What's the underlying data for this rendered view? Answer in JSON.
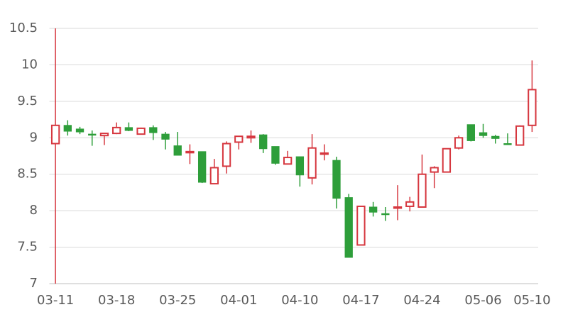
{
  "chart_data": {
    "type": "candlestick",
    "categories": [
      "03-11",
      null,
      null,
      null,
      null,
      "03-18",
      null,
      null,
      null,
      null,
      "03-25",
      null,
      null,
      null,
      null,
      "04-01",
      null,
      null,
      null,
      null,
      "04-10",
      null,
      null,
      null,
      null,
      "04-17",
      null,
      null,
      null,
      null,
      "04-24",
      null,
      null,
      null,
      null,
      "05-06",
      null,
      null,
      null,
      "05-10"
    ],
    "open": [
      8.92,
      9.17,
      9.12,
      9.05,
      9.03,
      9.06,
      9.14,
      9.05,
      9.14,
      9.05,
      8.89,
      8.8,
      8.81,
      8.37,
      8.61,
      8.94,
      9.0,
      9.04,
      8.88,
      8.64,
      8.74,
      8.45,
      8.78,
      8.69,
      8.18,
      7.53,
      8.05,
      7.96,
      8.04,
      8.06,
      8.05,
      8.53,
      8.53,
      8.86,
      9.18,
      9.07,
      9.02,
      8.92,
      8.9,
      9.17
    ],
    "high": [
      10.5,
      9.24,
      9.15,
      9.1,
      9.06,
      9.21,
      9.21,
      9.14,
      9.17,
      9.08,
      9.08,
      8.91,
      8.81,
      8.71,
      8.95,
      9.02,
      9.1,
      9.05,
      8.88,
      8.82,
      8.74,
      9.05,
      8.91,
      8.74,
      8.23,
      8.06,
      8.12,
      8.05,
      8.35,
      8.19,
      8.77,
      8.61,
      8.85,
      9.03,
      9.18,
      9.19,
      9.04,
      9.06,
      9.17,
      10.06
    ],
    "low": [
      7.0,
      9.03,
      9.05,
      8.89,
      8.9,
      9.05,
      9.09,
      9.05,
      8.97,
      8.84,
      8.76,
      8.64,
      8.38,
      8.37,
      8.51,
      8.84,
      8.93,
      8.79,
      8.63,
      8.64,
      8.33,
      8.36,
      8.69,
      8.03,
      7.36,
      7.53,
      7.92,
      7.86,
      7.87,
      7.99,
      8.05,
      8.31,
      8.53,
      8.84,
      8.95,
      9.0,
      8.92,
      8.91,
      8.9,
      9.08
    ],
    "close": [
      9.17,
      9.09,
      9.08,
      9.04,
      9.06,
      9.14,
      9.1,
      9.13,
      9.07,
      8.98,
      8.76,
      8.81,
      8.39,
      8.59,
      8.92,
      9.02,
      9.02,
      8.85,
      8.65,
      8.73,
      8.49,
      8.86,
      8.79,
      8.17,
      7.36,
      8.06,
      7.98,
      7.95,
      8.05,
      8.12,
      8.5,
      8.59,
      8.85,
      9.0,
      8.96,
      9.03,
      8.99,
      8.91,
      9.16,
      9.66
    ],
    "up_color": "#d6373f",
    "down_color": "#2e9e3a",
    "ylim": [
      7,
      10.5
    ],
    "yticks": [
      7,
      7.5,
      8,
      8.5,
      9,
      9.5,
      10,
      10.5
    ],
    "grid": true
  }
}
